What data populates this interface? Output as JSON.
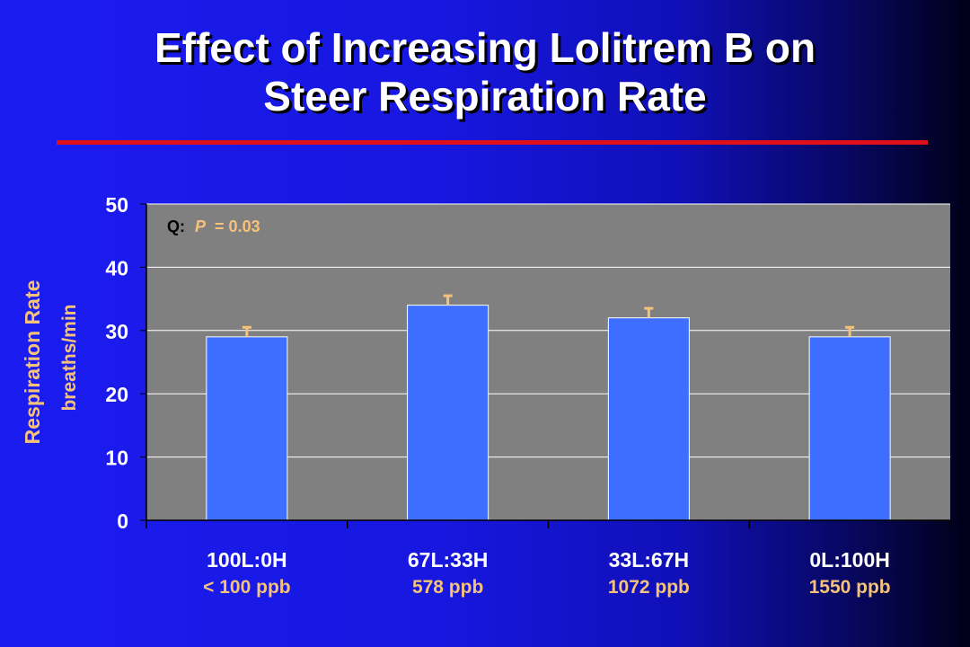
{
  "title_line1": "Effect of Increasing Lolitrem B on",
  "title_line2": "Steer Respiration Rate",
  "colors": {
    "background": "#1a1ae8",
    "plot_area": "#808080",
    "bar": "#3d6eff",
    "error_bar": "#f5c27a",
    "accent_text": "#f5c27a",
    "title_rule": "#e0101a"
  },
  "chart_data": {
    "type": "bar",
    "title": "Effect of Increasing Lolitrem B on Steer Respiration Rate",
    "ylabel": "Respiration Rate",
    "ylabel_unit": "breaths/min",
    "xlabel": "",
    "ylim": [
      0,
      50
    ],
    "yticks": [
      "0",
      "10",
      "20",
      "30",
      "40",
      "50"
    ],
    "grid": true,
    "categories": [
      "100L:0H",
      "67L:33H",
      "33L:67H",
      "0L:100H"
    ],
    "category_sublabels": [
      "< 100 ppb",
      "578 ppb",
      "1072 ppb",
      "1550 ppb"
    ],
    "values": [
      29,
      34,
      32,
      29
    ],
    "errors": [
      1.5,
      1.5,
      1.5,
      1.5
    ],
    "annotation": {
      "prefix": "Q:",
      "stat": "P",
      "equals": "= 0.03"
    }
  }
}
